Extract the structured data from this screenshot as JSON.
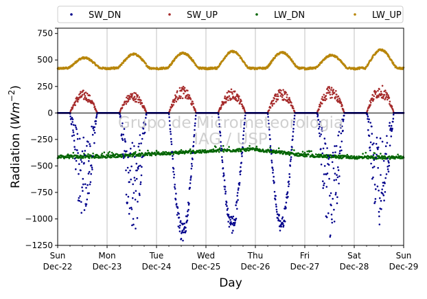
{
  "chart_data": {
    "type": "scatter",
    "title": "",
    "ylabel_main": "Radiation (",
    "ylabel_units": "Wm",
    "ylabel_exp": "−2",
    "ylabel_close": ")",
    "xlabel": "Day",
    "watermark_line1": "Grupo de Micrometeorologia",
    "watermark_line2": "IAG / USP",
    "ylim": [
      -1250,
      800
    ],
    "xlim": [
      0,
      7
    ],
    "yticks": [
      800,
      750,
      500,
      250,
      0,
      -250,
      -500,
      -750,
      -1000,
      -1250
    ],
    "ytick_labels": [
      "",
      "750",
      "500",
      "250",
      "0",
      "−250",
      "−500",
      "−750",
      "−1000",
      "−1250"
    ],
    "xticks": [
      {
        "x": 0,
        "day": "Sun",
        "date": "Dec-22"
      },
      {
        "x": 1,
        "day": "Mon",
        "date": "Dec-23"
      },
      {
        "x": 2,
        "day": "Tue",
        "date": "Dec-24"
      },
      {
        "x": 3,
        "day": "Wed",
        "date": "Dec-25"
      },
      {
        "x": 4,
        "day": "Thu",
        "date": "Dec-26"
      },
      {
        "x": 5,
        "day": "Fri",
        "date": "Dec-27"
      },
      {
        "x": 6,
        "day": "Sat",
        "date": "Dec-28"
      },
      {
        "x": 7,
        "day": "Sun",
        "date": "Dec-29"
      }
    ],
    "grid": "vertical",
    "legend_placement": "top",
    "series": [
      {
        "name": "SW_DN",
        "color": "#00008b"
      },
      {
        "name": "SW_UP",
        "color": "#a52a2a"
      },
      {
        "name": "LW_DN",
        "color": "#006400"
      },
      {
        "name": "LW_UP",
        "color": "#b8860b"
      }
    ],
    "days": [
      {
        "day": 0,
        "sw_dn_min": -1050,
        "sw_up_max": 215,
        "lw_up_peak": 520,
        "lw_dn": -415
      },
      {
        "day": 1,
        "sw_dn_min": -1180,
        "sw_up_max": 200,
        "lw_up_peak": 555,
        "lw_dn": -410
      },
      {
        "day": 2,
        "sw_dn_min": -1230,
        "sw_up_max": 250,
        "lw_up_peak": 565,
        "lw_dn": -385
      },
      {
        "day": 3,
        "sw_dn_min": -1150,
        "sw_up_max": 225,
        "lw_up_peak": 580,
        "lw_dn": -360
      },
      {
        "day": 4,
        "sw_dn_min": -1140,
        "sw_up_max": 225,
        "lw_up_peak": 570,
        "lw_dn": -345
      },
      {
        "day": 5,
        "sw_dn_min": -1200,
        "sw_up_max": 255,
        "lw_up_peak": 545,
        "lw_dn": -400
      },
      {
        "day": 6,
        "sw_dn_min": -1100,
        "sw_up_max": 265,
        "lw_up_peak": 595,
        "lw_dn": -420
      }
    ],
    "night_values": {
      "sw_dn": 0,
      "sw_up": 0,
      "lw_up": 425
    },
    "zero_line": 0
  }
}
